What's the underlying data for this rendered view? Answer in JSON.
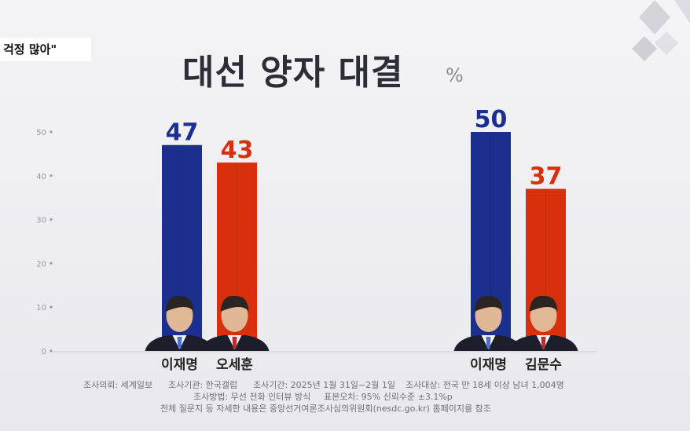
{
  "header": {
    "tag_text": "걱정 많아\"",
    "title": "대선 양자 대결",
    "unit": "%"
  },
  "colors": {
    "blue": "#1a2f8e",
    "red": "#d8300c",
    "title": "#2d2d38",
    "axis": "#9a9aa2"
  },
  "chart_data": {
    "type": "bar",
    "unit": "%",
    "ylim": [
      0,
      50
    ],
    "yticks": [
      0,
      10,
      20,
      30,
      40,
      50
    ],
    "grid": false,
    "groups": [
      {
        "bars": [
          {
            "category": "이재명",
            "value": 47,
            "color": "blue",
            "photo": "candidate-photo"
          },
          {
            "category": "오세훈",
            "value": 43,
            "color": "red",
            "photo": "candidate-photo"
          }
        ]
      },
      {
        "bars": [
          {
            "category": "이재명",
            "value": 50,
            "color": "blue",
            "photo": "candidate-photo"
          },
          {
            "category": "김문수",
            "value": 37,
            "color": "red",
            "photo": "candidate-photo"
          }
        ]
      }
    ]
  },
  "footnotes": {
    "client": "조사의뢰: 세계일보",
    "agency": "조사기관: 한국갤럽",
    "period": "조사기간: 2025년 1월 31일~2월 1일",
    "target": "조사대상: 전국 만 18세 이상 남녀 1,004명",
    "method": "조사방법: 무선 전화 인터뷰 방식",
    "error": "표본오차: 95% 신뢰수준 ±3.1%p",
    "reference": "전체 질문지 등 자세한 내용은 중앙선거여론조사심의위원회(nesdc.go.kr) 홈페이지를 참조"
  }
}
